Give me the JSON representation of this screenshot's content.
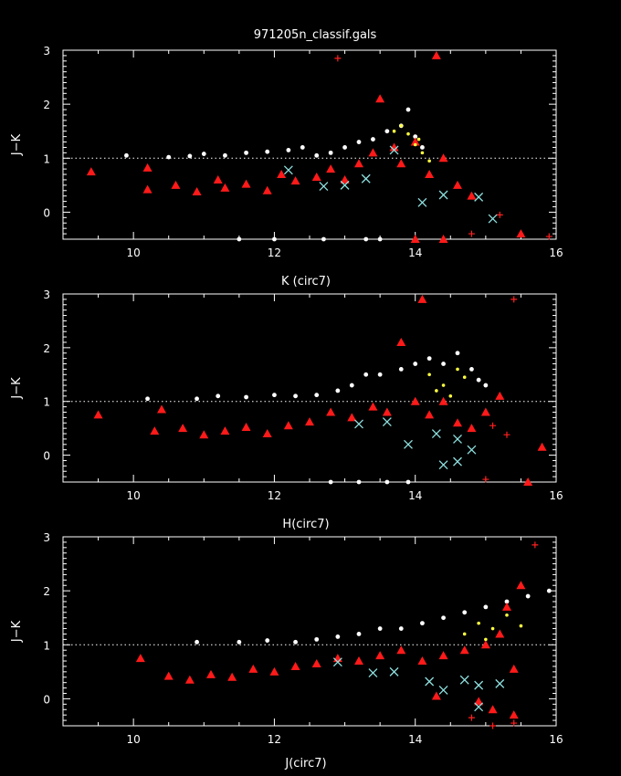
{
  "figure": {
    "title": "971205n_classif.gals",
    "colors": {
      "background": "#000000",
      "axes": "#ffffff",
      "stars": "#ffffff",
      "triangles": "#ff1a1a",
      "plus": "#ff2020",
      "crosses": "#8fe0e0",
      "yellow": "#ffff40",
      "reference_line": "#ffffff"
    },
    "marker_symbols": [
      "white-dot",
      "red-triangle",
      "red-plus",
      "cyan-cross",
      "yellow-dot"
    ]
  },
  "chart_data": [
    {
      "type": "scatter",
      "xlabel": "K (circ7)",
      "ylabel": "J−K",
      "xlim": [
        9,
        16
      ],
      "ylim": [
        -0.5,
        3
      ],
      "xticks": [
        "10",
        "12",
        "14",
        "16"
      ],
      "yticks": [
        "0",
        "1",
        "2",
        "3"
      ],
      "reference_line_y": 1.0,
      "series": [
        {
          "symbol": "white-dot",
          "points": [
            [
              9.9,
              1.05
            ],
            [
              10.5,
              1.02
            ],
            [
              10.8,
              1.04
            ],
            [
              11.0,
              1.08
            ],
            [
              11.3,
              1.05
            ],
            [
              11.6,
              1.1
            ],
            [
              11.9,
              1.12
            ],
            [
              12.2,
              1.15
            ],
            [
              12.4,
              1.2
            ],
            [
              12.6,
              1.05
            ],
            [
              12.8,
              1.1
            ],
            [
              13.0,
              1.2
            ],
            [
              13.2,
              1.3
            ],
            [
              13.4,
              1.35
            ],
            [
              13.6,
              1.5
            ],
            [
              13.8,
              1.6
            ],
            [
              13.9,
              1.9
            ],
            [
              14.0,
              1.4
            ],
            [
              14.1,
              1.2
            ],
            [
              11.5,
              -0.5
            ],
            [
              12.0,
              -0.5
            ],
            [
              12.7,
              -0.5
            ],
            [
              13.3,
              -0.5
            ],
            [
              13.5,
              -0.5
            ]
          ]
        },
        {
          "symbol": "red-triangle",
          "points": [
            [
              9.4,
              0.75
            ],
            [
              10.2,
              0.42
            ],
            [
              10.2,
              0.82
            ],
            [
              10.6,
              0.5
            ],
            [
              10.9,
              0.38
            ],
            [
              11.2,
              0.6
            ],
            [
              11.3,
              0.45
            ],
            [
              11.6,
              0.52
            ],
            [
              11.9,
              0.4
            ],
            [
              12.1,
              0.7
            ],
            [
              12.3,
              0.58
            ],
            [
              12.6,
              0.65
            ],
            [
              12.8,
              0.8
            ],
            [
              13.0,
              0.6
            ],
            [
              13.2,
              0.9
            ],
            [
              13.4,
              1.1
            ],
            [
              13.5,
              2.1
            ],
            [
              13.7,
              1.2
            ],
            [
              13.8,
              0.9
            ],
            [
              14.0,
              1.3
            ],
            [
              14.2,
              0.7
            ],
            [
              14.4,
              1.0
            ],
            [
              14.6,
              0.5
            ],
            [
              14.8,
              0.3
            ],
            [
              15.5,
              -0.4
            ],
            [
              14.3,
              2.9
            ],
            [
              14.0,
              -0.5
            ],
            [
              14.4,
              -0.5
            ]
          ]
        },
        {
          "symbol": "red-plus",
          "points": [
            [
              12.9,
              2.85
            ],
            [
              15.2,
              -0.05
            ],
            [
              15.9,
              -0.45
            ],
            [
              14.8,
              -0.4
            ]
          ]
        },
        {
          "symbol": "cyan-cross",
          "points": [
            [
              12.2,
              0.78
            ],
            [
              12.7,
              0.48
            ],
            [
              13.0,
              0.5
            ],
            [
              13.3,
              0.62
            ],
            [
              13.7,
              1.15
            ],
            [
              14.1,
              0.18
            ],
            [
              14.4,
              0.32
            ],
            [
              14.9,
              0.28
            ],
            [
              15.1,
              -0.12
            ]
          ]
        },
        {
          "symbol": "yellow-dot",
          "points": [
            [
              13.8,
              1.6
            ],
            [
              13.9,
              1.45
            ],
            [
              14.0,
              1.25
            ],
            [
              14.1,
              1.1
            ],
            [
              14.2,
              0.95
            ],
            [
              13.7,
              1.5
            ],
            [
              14.05,
              1.35
            ]
          ]
        }
      ]
    },
    {
      "type": "scatter",
      "xlabel": "H(circ7)",
      "ylabel": "J−K",
      "xlim": [
        9,
        16
      ],
      "ylim": [
        -0.5,
        3
      ],
      "xticks": [
        "10",
        "12",
        "14",
        "16"
      ],
      "yticks": [
        "0",
        "1",
        "2",
        "3"
      ],
      "reference_line_y": 1.0,
      "series": [
        {
          "symbol": "white-dot",
          "points": [
            [
              10.2,
              1.05
            ],
            [
              10.9,
              1.05
            ],
            [
              11.2,
              1.1
            ],
            [
              11.6,
              1.08
            ],
            [
              12.0,
              1.12
            ],
            [
              12.3,
              1.1
            ],
            [
              12.6,
              1.12
            ],
            [
              12.9,
              1.2
            ],
            [
              13.1,
              1.3
            ],
            [
              13.3,
              1.5
            ],
            [
              13.5,
              1.5
            ],
            [
              13.8,
              1.6
            ],
            [
              14.0,
              1.7
            ],
            [
              14.2,
              1.8
            ],
            [
              14.4,
              1.7
            ],
            [
              14.6,
              1.9
            ],
            [
              14.8,
              1.6
            ],
            [
              14.9,
              1.4
            ],
            [
              15.0,
              1.3
            ],
            [
              12.8,
              -0.5
            ],
            [
              13.2,
              -0.5
            ],
            [
              13.6,
              -0.5
            ],
            [
              13.9,
              -0.5
            ]
          ]
        },
        {
          "symbol": "red-triangle",
          "points": [
            [
              9.5,
              0.75
            ],
            [
              10.3,
              0.45
            ],
            [
              10.4,
              0.85
            ],
            [
              10.7,
              0.5
            ],
            [
              11.0,
              0.38
            ],
            [
              11.3,
              0.45
            ],
            [
              11.6,
              0.52
            ],
            [
              11.9,
              0.4
            ],
            [
              12.2,
              0.55
            ],
            [
              12.5,
              0.62
            ],
            [
              12.8,
              0.8
            ],
            [
              13.1,
              0.7
            ],
            [
              13.4,
              0.9
            ],
            [
              13.6,
              0.8
            ],
            [
              13.8,
              2.1
            ],
            [
              14.0,
              1.0
            ],
            [
              14.2,
              0.75
            ],
            [
              14.4,
              1.0
            ],
            [
              14.6,
              0.6
            ],
            [
              14.8,
              0.5
            ],
            [
              15.0,
              0.8
            ],
            [
              15.2,
              1.1
            ],
            [
              15.6,
              -0.5
            ],
            [
              15.8,
              0.15
            ],
            [
              14.1,
              2.9
            ]
          ]
        },
        {
          "symbol": "red-plus",
          "points": [
            [
              15.4,
              2.9
            ],
            [
              15.3,
              0.38
            ],
            [
              15.1,
              0.55
            ],
            [
              15.0,
              -0.45
            ]
          ]
        },
        {
          "symbol": "cyan-cross",
          "points": [
            [
              13.2,
              0.58
            ],
            [
              13.6,
              0.62
            ],
            [
              13.9,
              0.2
            ],
            [
              14.3,
              0.4
            ],
            [
              14.6,
              0.3
            ],
            [
              14.8,
              0.1
            ],
            [
              14.4,
              -0.18
            ],
            [
              14.6,
              -0.12
            ]
          ]
        },
        {
          "symbol": "yellow-dot",
          "points": [
            [
              14.2,
              1.5
            ],
            [
              14.4,
              1.3
            ],
            [
              14.6,
              1.6
            ],
            [
              14.5,
              1.1
            ],
            [
              14.3,
              1.2
            ],
            [
              14.7,
              1.45
            ]
          ]
        }
      ]
    },
    {
      "type": "scatter",
      "xlabel": "J(circ7)",
      "ylabel": "J−K",
      "xlim": [
        9,
        16
      ],
      "ylim": [
        -0.5,
        3
      ],
      "xticks": [
        "10",
        "12",
        "14",
        "16"
      ],
      "yticks": [
        "0",
        "1",
        "2",
        "3"
      ],
      "reference_line_y": 1.0,
      "series": [
        {
          "symbol": "white-dot",
          "points": [
            [
              10.9,
              1.05
            ],
            [
              11.5,
              1.05
            ],
            [
              11.9,
              1.08
            ],
            [
              12.3,
              1.05
            ],
            [
              12.6,
              1.1
            ],
            [
              12.9,
              1.15
            ],
            [
              13.2,
              1.2
            ],
            [
              13.5,
              1.3
            ],
            [
              13.8,
              1.3
            ],
            [
              14.1,
              1.4
            ],
            [
              14.4,
              1.5
            ],
            [
              14.7,
              1.6
            ],
            [
              15.0,
              1.7
            ],
            [
              15.3,
              1.8
            ],
            [
              15.6,
              1.9
            ],
            [
              15.9,
              2.0
            ]
          ]
        },
        {
          "symbol": "red-triangle",
          "points": [
            [
              10.1,
              0.75
            ],
            [
              10.5,
              0.42
            ],
            [
              10.8,
              0.35
            ],
            [
              11.1,
              0.45
            ],
            [
              11.4,
              0.4
            ],
            [
              11.7,
              0.55
            ],
            [
              12.0,
              0.5
            ],
            [
              12.3,
              0.6
            ],
            [
              12.6,
              0.65
            ],
            [
              12.9,
              0.75
            ],
            [
              13.2,
              0.7
            ],
            [
              13.5,
              0.8
            ],
            [
              13.8,
              0.9
            ],
            [
              14.1,
              0.7
            ],
            [
              14.4,
              0.8
            ],
            [
              14.7,
              0.9
            ],
            [
              15.0,
              1.0
            ],
            [
              15.2,
              1.2
            ],
            [
              15.3,
              1.7
            ],
            [
              15.5,
              2.1
            ],
            [
              15.4,
              0.55
            ],
            [
              14.3,
              0.05
            ],
            [
              14.9,
              -0.05
            ],
            [
              15.1,
              -0.2
            ],
            [
              15.4,
              -0.3
            ]
          ]
        },
        {
          "symbol": "red-plus",
          "points": [
            [
              15.7,
              2.85
            ],
            [
              15.1,
              -0.5
            ],
            [
              15.4,
              -0.45
            ],
            [
              14.8,
              -0.35
            ]
          ]
        },
        {
          "symbol": "cyan-cross",
          "points": [
            [
              12.9,
              0.68
            ],
            [
              13.4,
              0.48
            ],
            [
              13.7,
              0.5
            ],
            [
              14.2,
              0.32
            ],
            [
              14.4,
              0.16
            ],
            [
              14.7,
              0.35
            ],
            [
              14.9,
              0.25
            ],
            [
              14.9,
              -0.15
            ],
            [
              15.2,
              0.28
            ]
          ]
        },
        {
          "symbol": "yellow-dot",
          "points": [
            [
              14.7,
              1.2
            ],
            [
              14.9,
              1.4
            ],
            [
              15.1,
              1.3
            ],
            [
              15.3,
              1.55
            ],
            [
              15.0,
              1.1
            ],
            [
              15.5,
              1.35
            ]
          ]
        }
      ]
    }
  ]
}
